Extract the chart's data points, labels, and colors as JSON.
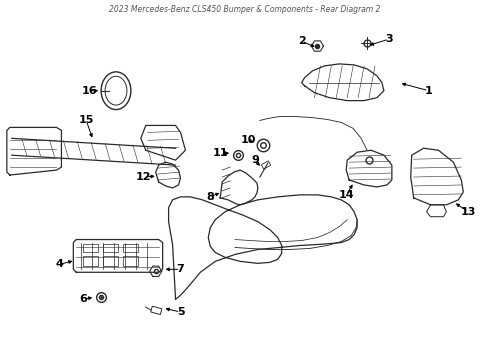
{
  "title": "2023 Mercedes-Benz CLS450 Bumper & Components - Rear Diagram 2",
  "background_color": "#ffffff",
  "line_color": "#2a2a2a",
  "label_color": "#000000",
  "figsize": [
    4.9,
    3.6
  ],
  "dpi": 100
}
